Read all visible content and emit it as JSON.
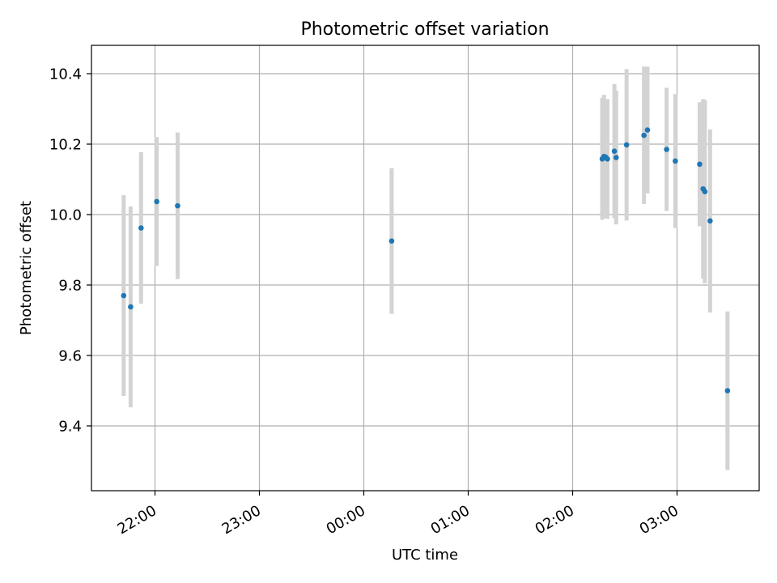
{
  "chart_data": {
    "type": "scatter",
    "title": "Photometric offset variation",
    "xlabel": "UTC time",
    "ylabel": "Photometric offset",
    "x_tick_labels": [
      "22:00",
      "23:00",
      "00:00",
      "01:00",
      "02:00",
      "03:00"
    ],
    "y_tick_labels": [
      "9.4",
      "9.6",
      "9.8",
      "10.0",
      "10.2",
      "10.4"
    ],
    "grid": true,
    "colors": {
      "point": "#1f77b4",
      "errorbar": "#d3d3d3",
      "grid": "#b0b0b0",
      "axes": "#000000"
    },
    "series": [
      {
        "points": [
          {
            "x": "21:42",
            "y": 9.77,
            "err": 0.285
          },
          {
            "x": "21:46",
            "y": 9.738,
            "err": 0.285
          },
          {
            "x": "21:52",
            "y": 9.962,
            "err": 0.215
          },
          {
            "x": "22:01",
            "y": 10.037,
            "err": 0.183
          },
          {
            "x": "22:13",
            "y": 10.025,
            "err": 0.208
          },
          {
            "x": "00:16",
            "y": 9.925,
            "err": 0.207
          },
          {
            "x": "02:17",
            "y": 10.158,
            "err": 0.173
          },
          {
            "x": "02:18",
            "y": 10.165,
            "err": 0.175
          },
          {
            "x": "02:19",
            "y": 10.163,
            "err": 0.16
          },
          {
            "x": "02:20",
            "y": 10.158,
            "err": 0.17
          },
          {
            "x": "02:24",
            "y": 10.18,
            "err": 0.19
          },
          {
            "x": "02:25",
            "y": 10.162,
            "err": 0.19
          },
          {
            "x": "02:31",
            "y": 10.198,
            "err": 0.215
          },
          {
            "x": "02:41",
            "y": 10.225,
            "err": 0.195
          },
          {
            "x": "02:43",
            "y": 10.24,
            "err": 0.18
          },
          {
            "x": "02:54",
            "y": 10.185,
            "err": 0.175
          },
          {
            "x": "02:59",
            "y": 10.152,
            "err": 0.19
          },
          {
            "x": "03:13",
            "y": 10.143,
            "err": 0.176
          },
          {
            "x": "03:15",
            "y": 10.073,
            "err": 0.255
          },
          {
            "x": "03:16",
            "y": 10.065,
            "err": 0.26
          },
          {
            "x": "03:19",
            "y": 9.982,
            "err": 0.26
          },
          {
            "x": "03:29",
            "y": 9.5,
            "err": 0.225
          }
        ]
      }
    ]
  }
}
